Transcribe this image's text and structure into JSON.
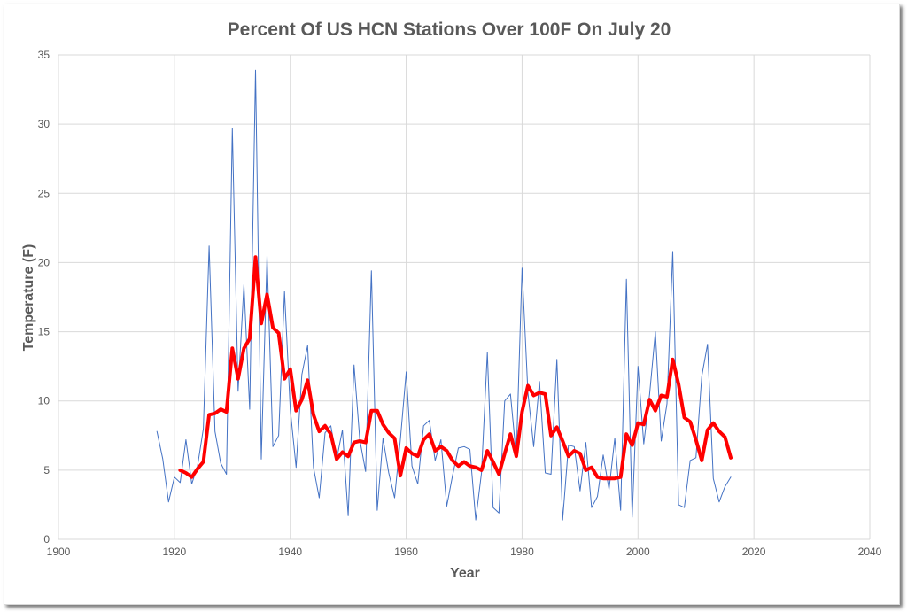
{
  "chart_data": {
    "type": "line",
    "title": "Percent Of US HCN Stations Over 100F On July 20",
    "xlabel": "Year",
    "ylabel": "Temperature (F)",
    "xlim": [
      1900,
      2040
    ],
    "ylim": [
      0,
      35
    ],
    "xticks": [
      1900,
      1920,
      1940,
      1960,
      1980,
      2000,
      2020,
      2040
    ],
    "yticks": [
      0,
      5,
      10,
      15,
      20,
      25,
      30,
      35
    ],
    "grid": true,
    "legend": "none",
    "series": [
      {
        "color": "#4472c4",
        "style": "thin",
        "x": [
          1917,
          1918,
          1919,
          1920,
          1921,
          1922,
          1923,
          1924,
          1925,
          1926,
          1927,
          1928,
          1929,
          1930,
          1931,
          1932,
          1933,
          1934,
          1935,
          1936,
          1937,
          1938,
          1939,
          1940,
          1941,
          1942,
          1943,
          1944,
          1945,
          1946,
          1947,
          1948,
          1949,
          1950,
          1951,
          1952,
          1953,
          1954,
          1955,
          1956,
          1957,
          1958,
          1959,
          1960,
          1961,
          1962,
          1963,
          1964,
          1965,
          1966,
          1967,
          1968,
          1969,
          1970,
          1971,
          1972,
          1973,
          1974,
          1975,
          1976,
          1977,
          1978,
          1979,
          1980,
          1981,
          1982,
          1983,
          1984,
          1985,
          1986,
          1987,
          1988,
          1989,
          1990,
          1991,
          1992,
          1993,
          1994,
          1995,
          1996,
          1997,
          1998,
          1999,
          2000,
          2001,
          2002,
          2003,
          2004,
          2005,
          2006,
          2007,
          2008,
          2009,
          2010,
          2011,
          2012,
          2013,
          2014,
          2015,
          2016
        ],
        "values": [
          7.8,
          5.8,
          2.7,
          4.5,
          4.1,
          7.2,
          4.0,
          5.3,
          8.0,
          21.2,
          7.8,
          5.5,
          4.7,
          29.7,
          10.7,
          18.4,
          9.4,
          33.9,
          5.8,
          20.5,
          6.7,
          7.5,
          17.9,
          9.4,
          5.2,
          11.9,
          14.0,
          5.2,
          3.0,
          7.7,
          8.2,
          5.8,
          7.9,
          1.7,
          12.6,
          7.2,
          4.9,
          19.4,
          2.1,
          7.3,
          4.8,
          3.0,
          7.2,
          12.1,
          5.3,
          4.0,
          8.2,
          8.6,
          5.7,
          7.2,
          2.4,
          4.6,
          6.6,
          6.7,
          6.5,
          1.4,
          4.8,
          13.5,
          2.3,
          1.9,
          10.0,
          10.5,
          6.0,
          19.6,
          10.6,
          6.7,
          11.4,
          4.8,
          4.7,
          13.0,
          1.4,
          6.8,
          6.7,
          3.5,
          7.0,
          2.3,
          3.1,
          6.1,
          3.6,
          7.3,
          2.1,
          18.8,
          1.6,
          12.5,
          6.9,
          10.5,
          15.0,
          7.1,
          9.8,
          20.8,
          2.5,
          2.3,
          5.7,
          5.9,
          11.8,
          14.1,
          4.4,
          2.7,
          3.8,
          4.5
        ]
      },
      {
        "color": "#ff0000",
        "style": "thick",
        "x": [
          1921,
          1922,
          1923,
          1924,
          1925,
          1926,
          1927,
          1928,
          1929,
          1930,
          1931,
          1932,
          1933,
          1934,
          1935,
          1936,
          1937,
          1938,
          1939,
          1940,
          1941,
          1942,
          1943,
          1944,
          1945,
          1946,
          1947,
          1948,
          1949,
          1950,
          1951,
          1952,
          1953,
          1954,
          1955,
          1956,
          1957,
          1958,
          1959,
          1960,
          1961,
          1962,
          1963,
          1964,
          1965,
          1966,
          1967,
          1968,
          1969,
          1970,
          1971,
          1972,
          1973,
          1974,
          1975,
          1976,
          1977,
          1978,
          1979,
          1980,
          1981,
          1982,
          1983,
          1984,
          1985,
          1986,
          1987,
          1988,
          1989,
          1990,
          1991,
          1992,
          1993,
          1994,
          1995,
          1996,
          1997,
          1998,
          1999,
          2000,
          2001,
          2002,
          2003,
          2004,
          2005,
          2006,
          2007,
          2008,
          2009,
          2010,
          2011,
          2012,
          2013,
          2014,
          2015,
          2016
        ],
        "values": [
          5.0,
          4.8,
          4.5,
          5.1,
          5.6,
          9.0,
          9.1,
          9.4,
          9.2,
          13.8,
          11.6,
          13.8,
          14.5,
          20.4,
          15.6,
          17.7,
          15.3,
          14.9,
          11.6,
          12.3,
          9.3,
          10.1,
          11.5,
          9.0,
          7.8,
          8.2,
          7.6,
          5.8,
          6.3,
          6.0,
          7.0,
          7.1,
          7.0,
          9.3,
          9.3,
          8.3,
          7.7,
          7.3,
          4.6,
          6.6,
          6.2,
          6.0,
          7.2,
          7.6,
          6.4,
          6.7,
          6.4,
          5.7,
          5.3,
          5.6,
          5.3,
          5.2,
          5.0,
          6.4,
          5.6,
          4.7,
          6.2,
          7.6,
          6.0,
          9.2,
          11.1,
          10.4,
          10.6,
          10.5,
          7.5,
          8.1,
          7.1,
          6.0,
          6.4,
          6.2,
          5.0,
          5.2,
          4.5,
          4.4,
          4.4,
          4.4,
          4.5,
          7.6,
          6.8,
          8.4,
          8.3,
          10.1,
          9.3,
          10.4,
          10.3,
          13.0,
          11.2,
          8.8,
          8.5,
          7.2,
          5.7,
          7.9,
          8.4,
          7.8,
          7.4,
          5.9
        ]
      }
    ]
  }
}
